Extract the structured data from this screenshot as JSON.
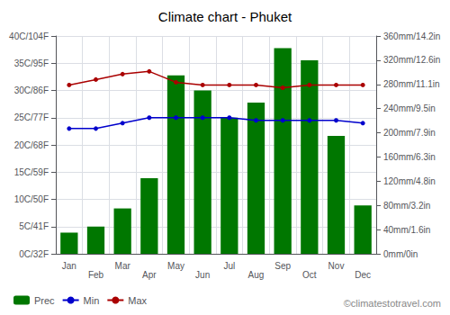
{
  "chart_data": {
    "type": "bar",
    "title": "Climate chart - Phuket",
    "categories": [
      "Jan",
      "Feb",
      "Mar",
      "Apr",
      "May",
      "Jun",
      "Jul",
      "Aug",
      "Sep",
      "Oct",
      "Nov",
      "Dec"
    ],
    "series": [
      {
        "name": "Prec",
        "type": "bar",
        "axis": "y2",
        "color": "#007700",
        "values": [
          35,
          45,
          75,
          125,
          295,
          270,
          225,
          250,
          340,
          320,
          195,
          80
        ]
      },
      {
        "name": "Min",
        "type": "line",
        "color": "#0000CC",
        "marker": "circle",
        "values": [
          23.0,
          23.0,
          24.0,
          25.0,
          25.0,
          25.0,
          25.0,
          24.5,
          24.5,
          24.5,
          24.5,
          24.0
        ]
      },
      {
        "name": "Max",
        "type": "line",
        "color": "#AA0000",
        "marker": "circle",
        "values": [
          31.0,
          32.0,
          33.0,
          33.5,
          31.5,
          31.0,
          31.0,
          31.0,
          30.5,
          31.0,
          31.0,
          31.0
        ]
      }
    ],
    "ylim": [
      0,
      40
    ],
    "yticks": [
      {
        "value": 0,
        "label": "0C/32F"
      },
      {
        "value": 5,
        "label": "5C/41F"
      },
      {
        "value": 10,
        "label": "10C/50F"
      },
      {
        "value": 15,
        "label": "15C/59F"
      },
      {
        "value": 20,
        "label": "20C/68F"
      },
      {
        "value": 25,
        "label": "25C/77F"
      },
      {
        "value": 30,
        "label": "30C/86F"
      },
      {
        "value": 35,
        "label": "35C/95F"
      },
      {
        "value": 40,
        "label": "40C/104F"
      }
    ],
    "y2lim": [
      0,
      360
    ],
    "y2ticks": [
      {
        "value": 0,
        "label": "0mm/0in"
      },
      {
        "value": 40,
        "label": "40mm/1.6in"
      },
      {
        "value": 80,
        "label": "80mm/3.2in"
      },
      {
        "value": 120,
        "label": "120mm/4.8in"
      },
      {
        "value": 160,
        "label": "160mm/6.3in"
      },
      {
        "value": 200,
        "label": "200mm/7.9in"
      },
      {
        "value": 240,
        "label": "240mm/9.5in"
      },
      {
        "value": 280,
        "label": "280mm/11.1in"
      },
      {
        "value": 320,
        "label": "320mm/12.6in"
      },
      {
        "value": 360,
        "label": "360mm/14.2in"
      }
    ],
    "grid": true,
    "legend": "lower left",
    "annotations": [
      "©climatestotravel.com"
    ]
  }
}
